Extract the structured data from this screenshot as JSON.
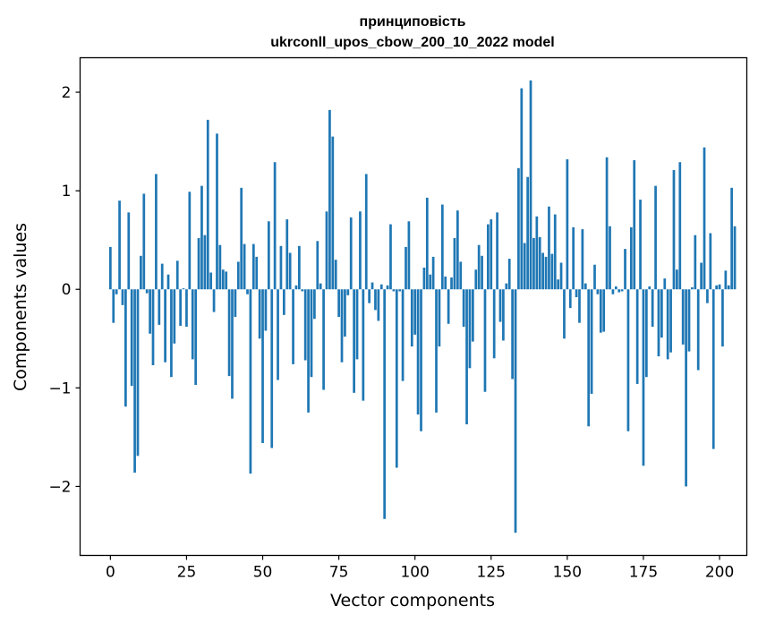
{
  "chart_data": {
    "type": "bar",
    "title_line1": "принциповість",
    "title_line2": "ukrconll_upos_cbow_200_10_2022 model",
    "xlabel": "Vector components",
    "ylabel": "Components values",
    "xlim": [
      -9.95,
      208.95
    ],
    "ylim": [
      -2.7,
      2.35
    ],
    "xticks": [
      0,
      25,
      50,
      75,
      100,
      125,
      150,
      175,
      200
    ],
    "xtick_labels": [
      "0",
      "25",
      "50",
      "75",
      "100",
      "125",
      "150",
      "175",
      "200"
    ],
    "yticks": [
      2,
      1,
      0,
      -1,
      -2
    ],
    "ytick_labels": [
      "2",
      "1",
      "0",
      "−1",
      "−2"
    ],
    "bar_color": "#1f77b4",
    "values": [
      0.43,
      -0.34,
      -0.05,
      0.9,
      -0.16,
      -1.19,
      0.78,
      -0.98,
      -1.86,
      -1.69,
      0.34,
      0.97,
      -0.04,
      -0.45,
      -0.77,
      1.17,
      -0.36,
      0.26,
      -0.74,
      0.15,
      -0.89,
      -0.55,
      0.29,
      -0.37,
      0.01,
      -0.38,
      0.99,
      -0.71,
      -0.97,
      0.52,
      1.05,
      0.55,
      1.72,
      0.17,
      -0.23,
      1.58,
      0.45,
      0.2,
      0.18,
      -0.88,
      -1.11,
      -0.28,
      0.28,
      1.03,
      0.46,
      -0.05,
      -1.87,
      0.46,
      0.33,
      -0.5,
      -1.56,
      -0.42,
      0.69,
      -1.61,
      1.29,
      -0.92,
      0.44,
      -0.26,
      0.71,
      0.37,
      -0.76,
      0.04,
      0.44,
      -0.02,
      -0.72,
      -1.25,
      -0.89,
      -0.3,
      0.49,
      0.06,
      -1.02,
      0.79,
      1.82,
      1.55,
      0.3,
      -0.28,
      -0.74,
      -0.48,
      -0.06,
      0.73,
      -1.05,
      -0.71,
      0.79,
      -1.13,
      1.17,
      -0.14,
      0.07,
      -0.21,
      -0.32,
      0.05,
      -2.33,
      0.04,
      0.66,
      -0.02,
      -1.81,
      -0.02,
      -0.93,
      0.43,
      0.69,
      -0.58,
      -0.46,
      -1.27,
      -1.44,
      0.22,
      0.93,
      0.15,
      0.33,
      -1.25,
      -0.58,
      0.86,
      0.13,
      -0.35,
      0.12,
      0.52,
      0.8,
      0.28,
      -0.38,
      -1.37,
      -0.8,
      -0.53,
      0.2,
      0.45,
      0.34,
      -1.04,
      0.66,
      0.71,
      -0.7,
      0.78,
      -0.33,
      -0.52,
      0.06,
      0.31,
      -0.91,
      -2.47,
      1.23,
      2.04,
      0.47,
      1.14,
      2.12,
      0.52,
      0.74,
      0.53,
      0.37,
      0.33,
      0.84,
      0.36,
      0.76,
      0.1,
      0.27,
      -0.5,
      1.32,
      -0.19,
      0.63,
      -0.08,
      -0.34,
      0.61,
      0.06,
      -1.39,
      -1.06,
      0.25,
      -0.05,
      -0.44,
      -0.43,
      1.34,
      0.64,
      -0.05,
      0.03,
      -0.03,
      -0.02,
      0.41,
      -1.44,
      0.63,
      1.31,
      -0.96,
      0.91,
      -1.79,
      -0.89,
      0.03,
      -0.38,
      1.05,
      -0.68,
      -0.49,
      0.11,
      -0.71,
      -0.64,
      1.21,
      0.2,
      1.29,
      -0.56,
      -2.0,
      -0.63,
      0.02,
      0.55,
      -0.82,
      0.27,
      1.44,
      -0.14,
      0.57,
      -1.62,
      0.04,
      0.05,
      -0.58,
      0.19,
      0.04,
      1.03,
      0.64
    ]
  }
}
